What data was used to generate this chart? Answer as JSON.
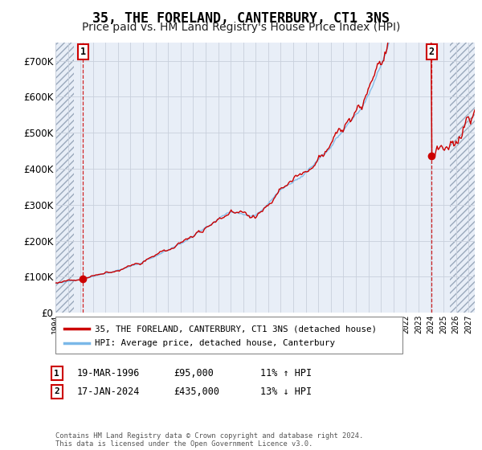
{
  "title": "35, THE FORELAND, CANTERBURY, CT1 3NS",
  "subtitle": "Price paid vs. HM Land Registry's House Price Index (HPI)",
  "ylim": [
    0,
    750000
  ],
  "xlim_start": 1994.0,
  "xlim_end": 2027.5,
  "background_color": "#e8eef7",
  "hatch_left_end": 1995.5,
  "hatch_right_start": 2025.5,
  "grid_color": "#c8d0dc",
  "transaction1_date": 1996.21,
  "transaction1_price": 95000,
  "transaction2_date": 2024.04,
  "transaction2_price": 435000,
  "legend_label1": "35, THE FORELAND, CANTERBURY, CT1 3NS (detached house)",
  "legend_label2": "HPI: Average price, detached house, Canterbury",
  "annotation1_date": "19-MAR-1996",
  "annotation1_price": "£95,000",
  "annotation1_hpi": "11% ↑ HPI",
  "annotation2_date": "17-JAN-2024",
  "annotation2_price": "£435,000",
  "annotation2_hpi": "13% ↓ HPI",
  "footer": "Contains HM Land Registry data © Crown copyright and database right 2024.\nThis data is licensed under the Open Government Licence v3.0.",
  "line_color_property": "#cc0000",
  "line_color_hpi": "#7ab8e8",
  "title_fontsize": 12,
  "subtitle_fontsize": 10
}
